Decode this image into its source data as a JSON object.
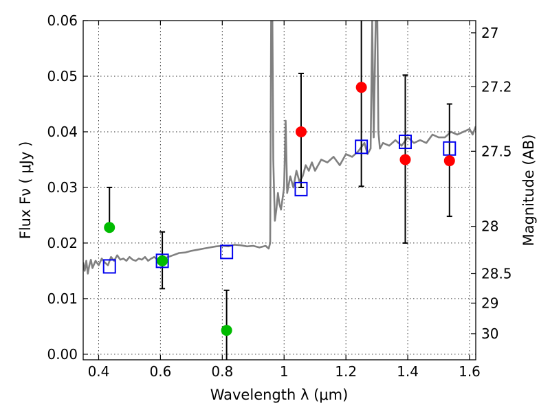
{
  "chart_data": {
    "type": "scatter",
    "xlabel": "Wavelength  λ (μm)",
    "ylabel": "Flux  Fν  ( μJy )",
    "ylabel_right": "Magnitude (AB)",
    "xlim": [
      0.35,
      1.62
    ],
    "ylim": [
      -0.001,
      0.06
    ],
    "grid": true,
    "x_ticks": [
      0.4,
      0.6,
      0.8,
      1.0,
      1.2,
      1.4,
      1.6
    ],
    "x_tick_labels": [
      "0.4",
      "0.6",
      "0.8",
      "1",
      "1.2",
      "1.4",
      "1.6"
    ],
    "y_ticks": [
      0.0,
      0.01,
      0.02,
      0.03,
      0.04,
      0.05,
      0.06
    ],
    "y_tick_labels": [
      "0.00",
      "0.01",
      "0.02",
      "0.03",
      "0.04",
      "0.05",
      "0.06"
    ],
    "right_ticks": [
      {
        "label": "27",
        "flux": 0.0578
      },
      {
        "label": "27.2",
        "flux": 0.0481
      },
      {
        "label": "27.5",
        "flux": 0.0365
      },
      {
        "label": "28",
        "flux": 0.023
      },
      {
        "label": "28.5",
        "flux": 0.0145
      },
      {
        "label": "29",
        "flux": 0.0092
      },
      {
        "label": "30",
        "flux": 0.0037
      }
    ],
    "series": [
      {
        "kind": "errorbar-points",
        "color": "#00bb00",
        "points": [
          {
            "x": 0.435,
            "y": 0.0228,
            "yerr_low": 0.0228,
            "yerr_high": 0.03
          },
          {
            "x": 0.606,
            "y": 0.0168,
            "yerr_low": 0.0118,
            "yerr_high": 0.022
          },
          {
            "x": 0.814,
            "y": 0.0043,
            "yerr_low": -0.002,
            "yerr_high": 0.0115
          }
        ]
      },
      {
        "kind": "errorbar-points",
        "color": "#ff0000",
        "points": [
          {
            "x": 1.055,
            "y": 0.04,
            "yerr_low": 0.03,
            "yerr_high": 0.0505
          },
          {
            "x": 1.25,
            "y": 0.048,
            "yerr_low": 0.0302,
            "yerr_high": 0.065
          },
          {
            "x": 1.392,
            "y": 0.035,
            "yerr_low": 0.02,
            "yerr_high": 0.0502
          },
          {
            "x": 1.535,
            "y": 0.0348,
            "yerr_low": 0.0248,
            "yerr_high": 0.045
          }
        ]
      },
      {
        "kind": "squares",
        "color": "#0000ee",
        "points": [
          {
            "x": 0.435,
            "y": 0.0158
          },
          {
            "x": 0.606,
            "y": 0.0168
          },
          {
            "x": 0.814,
            "y": 0.0184
          },
          {
            "x": 1.055,
            "y": 0.0297
          },
          {
            "x": 1.25,
            "y": 0.0373
          },
          {
            "x": 1.392,
            "y": 0.0382
          },
          {
            "x": 1.535,
            "y": 0.037
          }
        ]
      },
      {
        "kind": "spectrum-line",
        "color": "#808080",
        "x": [
          0.35,
          0.355,
          0.36,
          0.365,
          0.37,
          0.375,
          0.38,
          0.39,
          0.4,
          0.41,
          0.42,
          0.43,
          0.44,
          0.45,
          0.46,
          0.47,
          0.48,
          0.49,
          0.5,
          0.51,
          0.52,
          0.53,
          0.54,
          0.55,
          0.56,
          0.57,
          0.58,
          0.59,
          0.6,
          0.62,
          0.64,
          0.66,
          0.68,
          0.7,
          0.72,
          0.74,
          0.76,
          0.78,
          0.8,
          0.82,
          0.84,
          0.86,
          0.88,
          0.9,
          0.92,
          0.94,
          0.95,
          0.955,
          0.958,
          0.96,
          0.962,
          0.965,
          0.97,
          0.975,
          0.98,
          0.985,
          0.99,
          0.995,
          1.0,
          1.005,
          1.01,
          1.02,
          1.03,
          1.04,
          1.05,
          1.06,
          1.07,
          1.08,
          1.09,
          1.1,
          1.12,
          1.14,
          1.16,
          1.18,
          1.2,
          1.22,
          1.24,
          1.26,
          1.27,
          1.28,
          1.285,
          1.29,
          1.295,
          1.3,
          1.305,
          1.31,
          1.32,
          1.34,
          1.36,
          1.38,
          1.4,
          1.42,
          1.44,
          1.46,
          1.48,
          1.5,
          1.52,
          1.54,
          1.56,
          1.58,
          1.6,
          1.61,
          1.62
        ],
        "y": [
          0.0165,
          0.015,
          0.0168,
          0.0145,
          0.016,
          0.017,
          0.0155,
          0.0168,
          0.016,
          0.0172,
          0.0165,
          0.016,
          0.0175,
          0.0168,
          0.0178,
          0.017,
          0.0172,
          0.0168,
          0.0175,
          0.017,
          0.0168,
          0.0172,
          0.017,
          0.0175,
          0.0168,
          0.0172,
          0.0175,
          0.017,
          0.0173,
          0.0174,
          0.0178,
          0.0182,
          0.0183,
          0.0186,
          0.0188,
          0.019,
          0.0192,
          0.0194,
          0.0195,
          0.0194,
          0.0197,
          0.0196,
          0.0194,
          0.0195,
          0.0192,
          0.0195,
          0.019,
          0.02,
          0.06,
          0.07,
          0.06,
          0.035,
          0.024,
          0.026,
          0.029,
          0.027,
          0.026,
          0.028,
          0.03,
          0.042,
          0.029,
          0.032,
          0.03,
          0.033,
          0.031,
          0.032,
          0.034,
          0.033,
          0.0345,
          0.033,
          0.035,
          0.0345,
          0.0355,
          0.034,
          0.036,
          0.0355,
          0.0365,
          0.038,
          0.036,
          0.037,
          0.06,
          0.039,
          0.056,
          0.07,
          0.04,
          0.037,
          0.038,
          0.0375,
          0.0385,
          0.0375,
          0.039,
          0.038,
          0.0385,
          0.038,
          0.0395,
          0.039,
          0.039,
          0.04,
          0.0395,
          0.04,
          0.0405,
          0.0395,
          0.041
        ]
      }
    ]
  }
}
